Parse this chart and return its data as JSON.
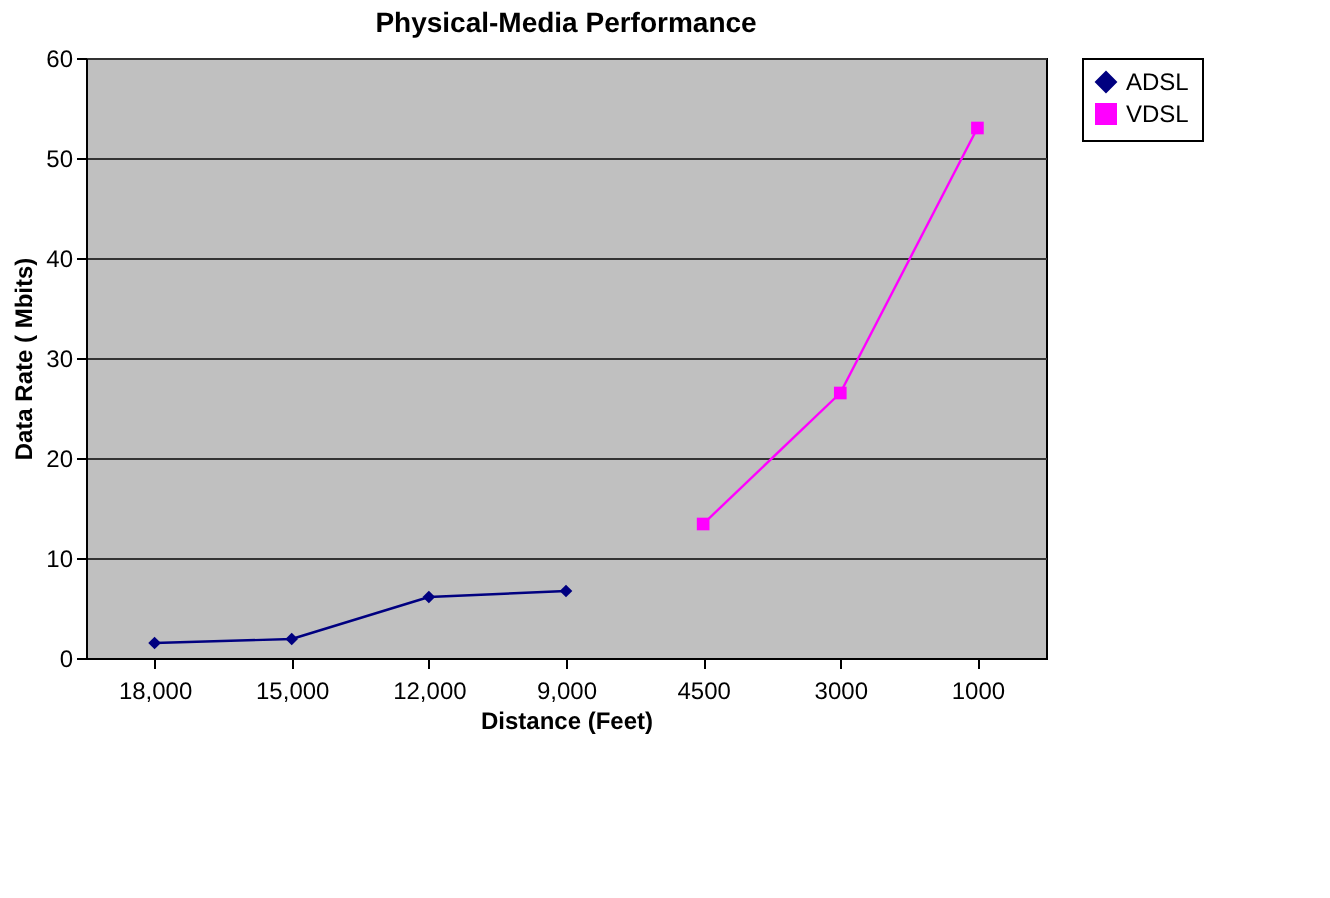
{
  "chart_data": {
    "type": "line",
    "title": "Physical-Media Performance",
    "xlabel": "Distance  (Feet)",
    "ylabel": "Data Rate  ( Mbits)",
    "categories": [
      "18,000",
      "15,000",
      "12,000",
      "9,000",
      "4500",
      "3000",
      "1000"
    ],
    "series": [
      {
        "name": "ADSL",
        "color": "#000080",
        "marker": "diamond",
        "values": [
          1.5,
          1.9,
          6.1,
          6.7,
          null,
          null,
          null
        ]
      },
      {
        "name": "VDSL",
        "color": "#ff00ff",
        "marker": "square",
        "values": [
          null,
          null,
          null,
          null,
          13.4,
          26.5,
          53
        ]
      }
    ],
    "ylim": [
      0,
      60
    ],
    "yticks": [
      0,
      10,
      20,
      30,
      40,
      50,
      60
    ],
    "grid": "y",
    "legend": "right",
    "line_style": "solid"
  }
}
